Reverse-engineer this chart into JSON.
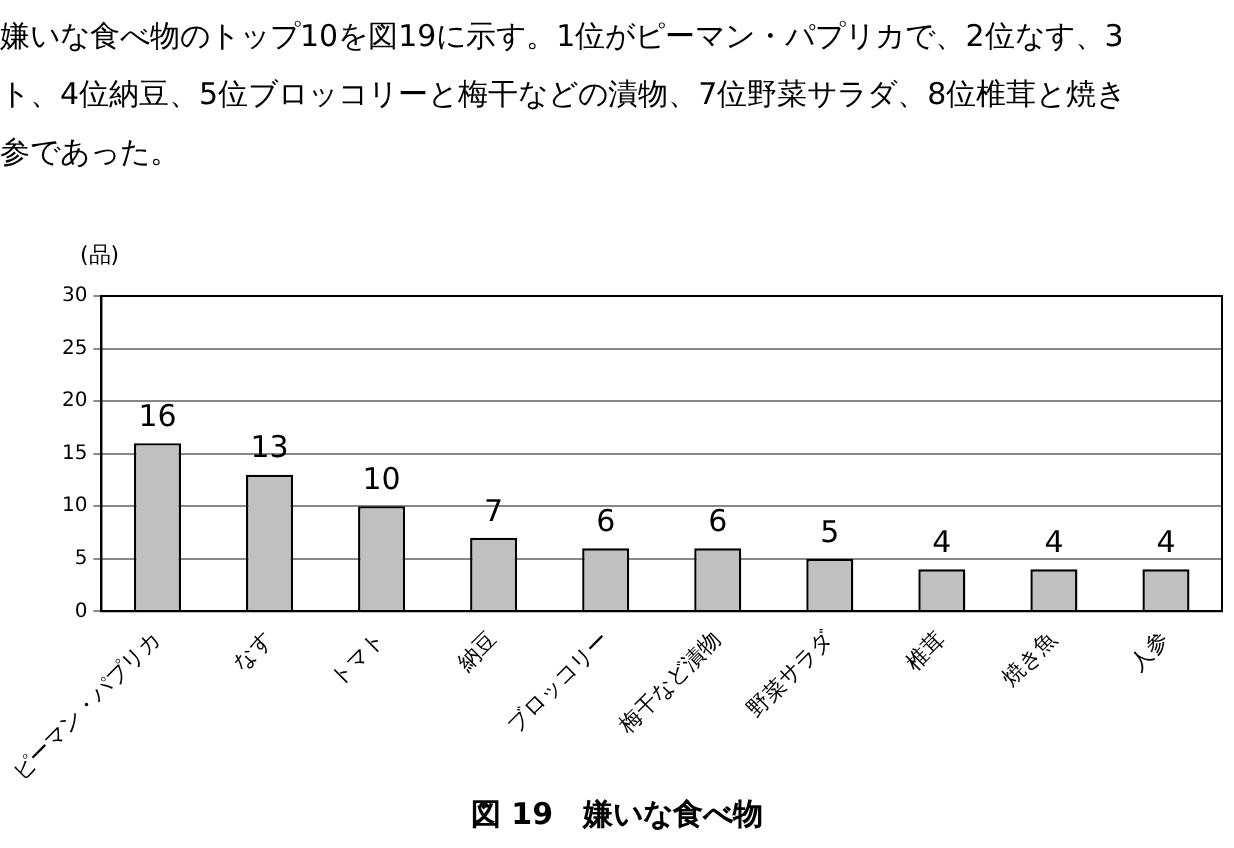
{
  "chart_data": {
    "type": "bar",
    "title": "図 19　嫌いな食べ物",
    "ylabel": "(品)",
    "annotations": [
      "嫌いな食べ物のトップ10を図19に示す。1位がピーマン・パプリカで、2位なす、3",
      "ト、4位納豆、5位ブロッコリーと梅干などの漬物、7位野菜サラダ、8位椎茸と焼き",
      "参であった。"
    ],
    "categories": [
      "ピーマン・パプリカ",
      "なす",
      "トマト",
      "納豆",
      "ブロッコリー",
      "梅干など漬物",
      "野菜サラダ",
      "椎茸",
      "焼き魚",
      "人参"
    ],
    "values": [
      16,
      13,
      10,
      7,
      6,
      6,
      5,
      4,
      4,
      4
    ],
    "color": "#c0c0c0",
    "ylim": [
      0,
      30
    ],
    "yticks": [
      0,
      5,
      10,
      15,
      20,
      25,
      30
    ],
    "grid": "y",
    "legend": false,
    "data_labels": true
  }
}
